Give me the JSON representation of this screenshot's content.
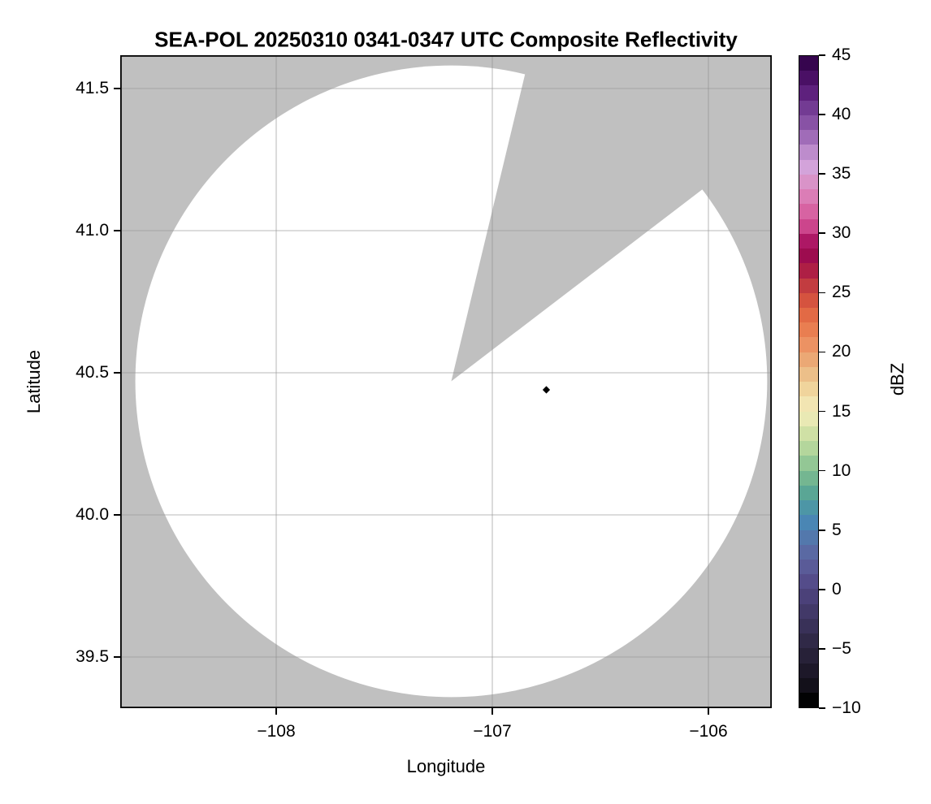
{
  "chart_data": {
    "type": "heatmap",
    "title": "SEA-POL 20250310 0341-0347 UTC Composite Reflectivity",
    "xlabel": "Longitude",
    "ylabel": "Latitude",
    "xlim": [
      -108.72,
      -105.7
    ],
    "ylim": [
      39.32,
      41.62
    ],
    "grid": true,
    "xticks": {
      "values": [
        -108,
        -107,
        -106
      ],
      "labels": [
        "−108",
        "−107",
        "−106"
      ]
    },
    "yticks": {
      "values": [
        41.5,
        41.0,
        40.5,
        40.0,
        39.5
      ],
      "labels": [
        "41.5",
        "41.0",
        "40.5",
        "40.0",
        "39.5"
      ]
    },
    "field": {
      "nodata_color": "#c0c0c0",
      "coverage_color": "#ffffff",
      "gridline_color": "rgba(145,145,145,0.5)",
      "radar_center": {
        "lon": -107.19,
        "lat": 40.47
      },
      "coverage_radius_deg_lon": 1.462,
      "blocked_sector_azimuth_deg": [
        13.5,
        52.6
      ],
      "description": "White disk = radar coverage with no echo; gray = no data; gray wedge = blocked sector"
    },
    "echoes": [
      {
        "lon": -106.75,
        "lat": 40.44,
        "dbz_approx": -9.5,
        "marker": "diamond",
        "color": "#000000"
      }
    ],
    "colorbar": {
      "label": "dBZ",
      "vmin": -10,
      "vmax": 45,
      "band_step": 1.25,
      "tick_labels": [
        "45",
        "40",
        "35",
        "30",
        "25",
        "20",
        "15",
        "10",
        "5",
        "0",
        "−5",
        "−10"
      ],
      "tick_values": [
        45,
        40,
        35,
        30,
        25,
        20,
        15,
        10,
        5,
        0,
        -5,
        -10
      ],
      "colors_top_to_bottom": [
        "#36054e",
        "#4a1065",
        "#5e217d",
        "#733b93",
        "#8852a5",
        "#a06cb8",
        "#bd8ccc",
        "#d3a3da",
        "#d993c8",
        "#db7db6",
        "#d763a2",
        "#cc458c",
        "#ad1865",
        "#9d0c4f",
        "#ae1f45",
        "#c23c40",
        "#d5533f",
        "#e26a45",
        "#e97e51",
        "#ec9263",
        "#eba875",
        "#ecbf89",
        "#f0d49c",
        "#f2e5b2",
        "#e9e9b4",
        "#cfe0a5",
        "#b4d69c",
        "#93c795",
        "#74b691",
        "#5aa695",
        "#4d96a6",
        "#4a86b4",
        "#5378ac",
        "#5a69a3",
        "#5a5b98",
        "#544c8a",
        "#4b4179",
        "#423968",
        "#393158",
        "#302947",
        "#272138",
        "#1d1829",
        "#13101a",
        "#020203"
      ]
    }
  }
}
